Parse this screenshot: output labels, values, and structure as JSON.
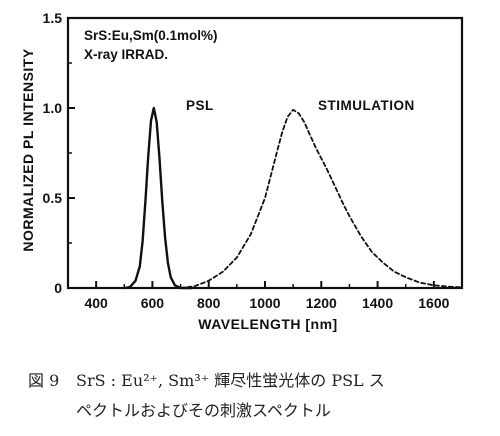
{
  "chart_data": {
    "type": "line",
    "inset_text": [
      "SrS:Eu,Sm(0.1mol%)",
      "X-ray IRRAD."
    ],
    "xlabel": "WAVELENGTH [nm]",
    "ylabel": "NORMALIZED PL INTENSITY",
    "xlim": [
      300,
      1700
    ],
    "ylim": [
      0,
      1.5
    ],
    "xticks": [
      400,
      600,
      800,
      1000,
      1200,
      1400,
      1600
    ],
    "xtick_labels": [
      "400",
      "600",
      "800",
      "1000",
      "1200",
      "1400",
      "1600"
    ],
    "yticks": [
      0,
      0.5,
      1.0,
      1.5
    ],
    "ytick_labels": [
      "0",
      "0.5",
      "1.0",
      "1.5"
    ],
    "series": [
      {
        "name": "PSL",
        "style": "solid",
        "color": "#111111",
        "x": [
          500,
          520,
          540,
          555,
          565,
          575,
          585,
          595,
          605,
          615,
          625,
          635,
          645,
          655,
          665,
          680,
          700,
          720,
          740
        ],
        "y": [
          0,
          0.005,
          0.04,
          0.12,
          0.26,
          0.48,
          0.73,
          0.93,
          1.0,
          0.92,
          0.72,
          0.48,
          0.28,
          0.14,
          0.06,
          0.015,
          0.0,
          0.0,
          0.0
        ]
      },
      {
        "name": "STIMULATION",
        "style": "dashed",
        "color": "#111111",
        "x": [
          700,
          750,
          800,
          850,
          900,
          950,
          1000,
          1030,
          1060,
          1080,
          1100,
          1120,
          1140,
          1160,
          1180,
          1200,
          1220,
          1250,
          1280,
          1300,
          1340,
          1380,
          1420,
          1460,
          1500,
          1550,
          1600,
          1650,
          1700
        ],
        "y": [
          0.0,
          0.01,
          0.04,
          0.09,
          0.17,
          0.3,
          0.5,
          0.68,
          0.86,
          0.95,
          0.99,
          0.97,
          0.92,
          0.85,
          0.78,
          0.72,
          0.66,
          0.56,
          0.46,
          0.4,
          0.29,
          0.2,
          0.14,
          0.09,
          0.06,
          0.03,
          0.015,
          0.008,
          0.004
        ]
      }
    ]
  },
  "caption": {
    "number": "図 9",
    "line1": "SrS : Eu²⁺, Sm³⁺ 輝尽性蛍光体の PSL ス",
    "line2": "ペクトルおよびその刺激スペクトル"
  }
}
